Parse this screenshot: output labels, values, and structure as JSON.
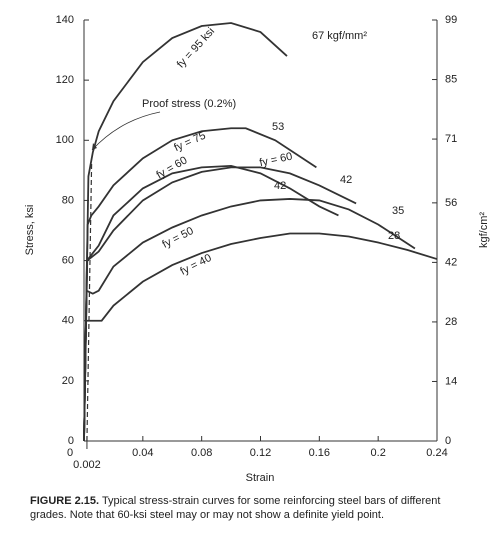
{
  "chart_data": {
    "type": "line",
    "xlabel": "Strain",
    "ylabel": "Stress, ksi",
    "y2label": "kgf/cm²",
    "xlim": [
      0,
      0.24
    ],
    "xticks": [
      0,
      0.002,
      0.04,
      0.08,
      0.12,
      0.16,
      0.2,
      0.24
    ],
    "ylim": [
      0,
      140
    ],
    "yticks": [
      0,
      20,
      40,
      60,
      80,
      100,
      120,
      140
    ],
    "y2lim": [
      0,
      99
    ],
    "y2ticks": [
      0,
      14,
      28,
      42,
      56,
      71,
      85,
      99
    ],
    "grid": false,
    "color": "#333333",
    "series": [
      {
        "name": "fy = 95 ksi",
        "end_label": "67 kgf/mm²",
        "x": [
          0,
          0.003,
          0.006,
          0.01,
          0.02,
          0.04,
          0.06,
          0.08,
          0.1,
          0.12,
          0.138
        ],
        "values": [
          0,
          88,
          96,
          103,
          113,
          126,
          134,
          138,
          139,
          136,
          128
        ]
      },
      {
        "name": "fy = 75",
        "end_label": "53",
        "x": [
          0,
          0.0025,
          0.005,
          0.01,
          0.02,
          0.04,
          0.06,
          0.08,
          0.1,
          0.11,
          0.13,
          0.158
        ],
        "values": [
          0,
          72,
          75,
          78,
          85,
          94,
          100,
          103,
          104,
          104,
          100,
          91
        ]
      },
      {
        "name": "fy = 60",
        "end_label": "42",
        "x": [
          0,
          0.002,
          0.01,
          0.02,
          0.04,
          0.06,
          0.08,
          0.1,
          0.12,
          0.14,
          0.16,
          0.173
        ],
        "values": [
          0,
          60,
          65,
          75,
          84,
          89,
          91,
          91.5,
          89,
          84,
          78,
          75
        ]
      },
      {
        "name": "fy = 60",
        "end_label": "42",
        "x": [
          0,
          0.0022,
          0.01,
          0.02,
          0.04,
          0.06,
          0.08,
          0.1,
          0.12,
          0.14,
          0.16,
          0.185
        ],
        "values": [
          0,
          60,
          63,
          70,
          80,
          86,
          89.5,
          91,
          91,
          89,
          85,
          79
        ]
      },
      {
        "name": "fy = 50",
        "end_label": "35",
        "x": [
          0,
          0.0017,
          0.006,
          0.01,
          0.02,
          0.04,
          0.06,
          0.08,
          0.1,
          0.12,
          0.14,
          0.16,
          0.18,
          0.2,
          0.225
        ],
        "values": [
          0,
          50,
          49,
          50,
          58,
          66,
          71,
          75,
          78,
          80,
          80.5,
          80,
          77,
          72,
          64
        ]
      },
      {
        "name": "fy = 40",
        "end_label": "28",
        "x": [
          0,
          0.0013,
          0.006,
          0.012,
          0.02,
          0.04,
          0.06,
          0.08,
          0.1,
          0.12,
          0.14,
          0.16,
          0.18,
          0.2,
          0.22,
          0.24
        ],
        "values": [
          0,
          40,
          40,
          40,
          45,
          53,
          58.5,
          62.5,
          65.5,
          67.5,
          69,
          69,
          68,
          66,
          63.5,
          60.5
        ]
      }
    ],
    "proof_line": {
      "label": "Proof stress (0.2%)",
      "x": [
        0.002,
        0.0052
      ],
      "values": [
        0,
        93
      ]
    }
  },
  "caption": {
    "label": "FIGURE 2.15.",
    "text": "Typical stress-strain curves for some reinforcing steel bars of different grades. Note that 60-ksi steel may or may not show a definite yield point."
  }
}
